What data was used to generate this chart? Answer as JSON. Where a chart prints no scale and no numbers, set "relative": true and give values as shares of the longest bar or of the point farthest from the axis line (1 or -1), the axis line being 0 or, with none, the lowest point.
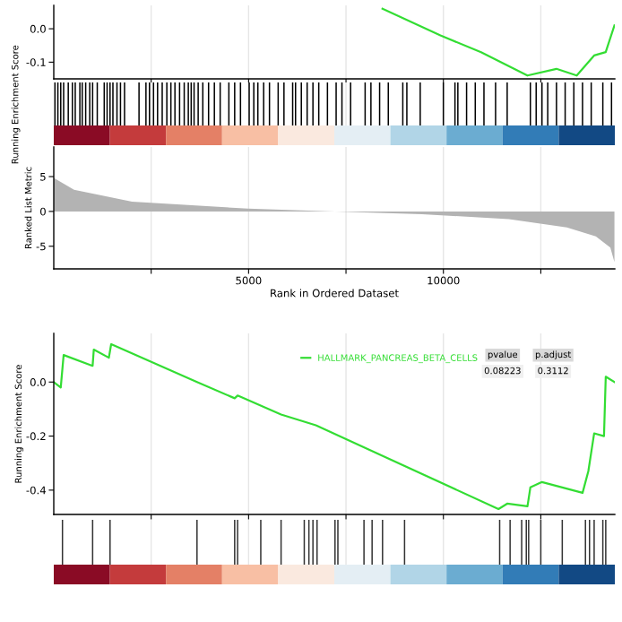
{
  "chart_data": [
    {
      "type": "line",
      "ylabel": "Running Enrichment Score",
      "tick_labels": "y",
      "grid": "x",
      "marker": "none",
      "line_style": "solid",
      "xlim": [
        0,
        14400
      ],
      "xticks": [
        {
          "value": 2500,
          "label": null
        },
        {
          "value": 5000,
          "label": null
        },
        {
          "value": 7500,
          "label": null
        },
        {
          "value": 10000,
          "label": null
        },
        {
          "value": 12500,
          "label": null
        }
      ],
      "ylim": [
        -0.15,
        0.07
      ],
      "yticks": [
        -0.1,
        {
          "value": 0,
          "label": "0.0"
        }
      ],
      "series": [
        {
          "color": "#33dd33",
          "x": [
            8437,
            9924,
            10967,
            12157,
            12901,
            13422,
            13868,
            14166,
            14390
          ],
          "values": [
            0.06,
            -0.02,
            -0.07,
            -0.14,
            -0.12,
            -0.14,
            -0.08,
            -0.07,
            0.01
          ]
        }
      ]
    },
    {
      "type": "bar",
      "relative": true,
      "tick_labels": false,
      "grid": "x",
      "xlim": [
        0,
        14400
      ],
      "xticks": [
        {
          "value": 2500,
          "label": null
        },
        {
          "value": 5000,
          "label": null
        },
        {
          "value": 7500,
          "label": null
        },
        {
          "value": 10000,
          "label": null
        },
        {
          "value": 12500,
          "label": null
        }
      ],
      "series": [
        {
          "color": "#000000",
          "x": [
            30,
            105,
            179,
            253,
            372,
            477,
            551,
            670,
            730,
            819,
            923,
            997,
            1116,
            1295,
            1369,
            1444,
            1518,
            1622,
            1712,
            1816,
            2188,
            2366,
            2456,
            2560,
            2664,
            2783,
            2902,
            3006,
            3110,
            3229,
            3348,
            3453,
            3527,
            3601,
            3706,
            3825,
            3973,
            4122,
            4271,
            4494,
            4643,
            4792,
            5015,
            5134,
            5238,
            5387,
            5536,
            5759,
            5908,
            6131,
            6205,
            6354,
            6503,
            6652,
            6801,
            7024,
            7247,
            7396,
            7619,
            7991,
            8140,
            8363,
            8586,
            8958,
            9062,
            9405,
            9999,
            10297,
            10371,
            10595,
            10818,
            11041,
            11339,
            11637,
            12232,
            12381,
            12530,
            12678,
            12902,
            13125,
            13348,
            13571,
            13794,
            14092,
            14315
          ],
          "values": [
            1,
            1,
            1,
            1,
            1,
            1,
            1,
            1,
            1,
            1,
            1,
            1,
            1,
            1,
            1,
            1,
            1,
            1,
            1,
            1,
            1,
            1,
            1,
            1,
            1,
            1,
            1,
            1,
            1,
            1,
            1,
            1,
            1,
            1,
            1,
            1,
            1,
            1,
            1,
            1,
            1,
            1,
            1,
            1,
            1,
            1,
            1,
            1,
            1,
            1,
            1,
            1,
            1,
            1,
            1,
            1,
            1,
            1,
            1,
            1,
            1,
            1,
            1,
            1,
            1,
            1,
            1,
            1,
            1,
            1,
            1,
            1,
            1,
            1,
            1,
            1,
            1,
            1,
            1,
            1,
            1,
            1,
            1,
            1,
            1
          ]
        }
      ]
    },
    {
      "type": "area",
      "xlabel": "Rank in Ordered Dataset",
      "ylabel": "Ranked List Metric",
      "grid": "x",
      "xlim": [
        0,
        14400
      ],
      "xticks": [
        {
          "value": 2500,
          "label": null
        },
        5000,
        {
          "value": 7500,
          "label": null
        },
        10000,
        {
          "value": 12500,
          "label": null
        }
      ],
      "ylim": [
        -8.25,
        9.25
      ],
      "yticks": [
        -5,
        0,
        5
      ],
      "series": [
        {
          "color": "#b3b3b3",
          "x": [
            0,
            521,
            2009,
            4985,
            7217,
            9449,
            11681,
            13169,
            13913,
            14285,
            14390
          ],
          "values": [
            4.8,
            3.1,
            1.4,
            0.4,
            0,
            -0.4,
            -1.1,
            -2.3,
            -3.6,
            -5.2,
            -7.3
          ]
        }
      ]
    },
    {
      "type": "line",
      "ylabel": "Running Enrichment Score",
      "tick_labels": "y",
      "grid": "x",
      "legend": "top right",
      "marker": "none",
      "line_style": "solid",
      "xlim": [
        0,
        14400
      ],
      "xticks": [
        {
          "value": 2500,
          "label": null
        },
        {
          "value": 5000,
          "label": null
        },
        {
          "value": 7500,
          "label": null
        },
        {
          "value": 10000,
          "label": null
        },
        {
          "value": 12500,
          "label": null
        }
      ],
      "ylim": [
        -0.49,
        0.18
      ],
      "yticks": [
        -0.4,
        -0.2,
        {
          "value": 0,
          "label": "0.0"
        }
      ],
      "annotations": [
        "pvalue",
        "p.adjust",
        "0.08223",
        "0.3112"
      ],
      "series": [
        {
          "name": "HALLMARK_PANCREAS_BETA_CELLS",
          "color": "#33dd33",
          "x": [
            0,
            179,
            253,
            997,
            1027,
            1414,
            1473,
            3676,
            4643,
            4718,
            5834,
            6727,
            11414,
            11637,
            12158,
            12232,
            12530,
            13572,
            13720,
            13869,
            14122,
            14167,
            14390
          ],
          "values": [
            0.0,
            -0.02,
            0.1,
            0.06,
            0.12,
            0.09,
            0.14,
            0.0,
            -0.06,
            -0.05,
            -0.12,
            -0.16,
            -0.47,
            -0.45,
            -0.46,
            -0.39,
            -0.37,
            -0.41,
            -0.33,
            -0.19,
            -0.2,
            0.02,
            0.0
          ]
        }
      ]
    },
    {
      "type": "bar",
      "relative": true,
      "tick_labels": false,
      "grid": "x",
      "xlim": [
        0,
        14400
      ],
      "xticks": [
        {
          "value": 2500,
          "label": null
        },
        {
          "value": 5000,
          "label": null
        },
        {
          "value": 7500,
          "label": null
        },
        {
          "value": 10000,
          "label": null
        },
        {
          "value": 12500,
          "label": null
        }
      ],
      "series": [
        {
          "color": "#333333",
          "x": [
            223,
            997,
            1444,
            3676,
            4643,
            4718,
            5313,
            5834,
            6429,
            6548,
            6652,
            6757,
            7218,
            7292,
            7962,
            8170,
            8438,
            9003,
            11444,
            11712,
            12009,
            12128,
            12188,
            12500,
            13051,
            13646,
            13750,
            13869,
            14092,
            14167
          ],
          "values": [
            1,
            1,
            1,
            1,
            1,
            1,
            1,
            1,
            1,
            1,
            1,
            1,
            1,
            1,
            1,
            1,
            1,
            1,
            1,
            1,
            1,
            1,
            1,
            1,
            1,
            1,
            1,
            1,
            1,
            1
          ]
        }
      ]
    }
  ]
}
